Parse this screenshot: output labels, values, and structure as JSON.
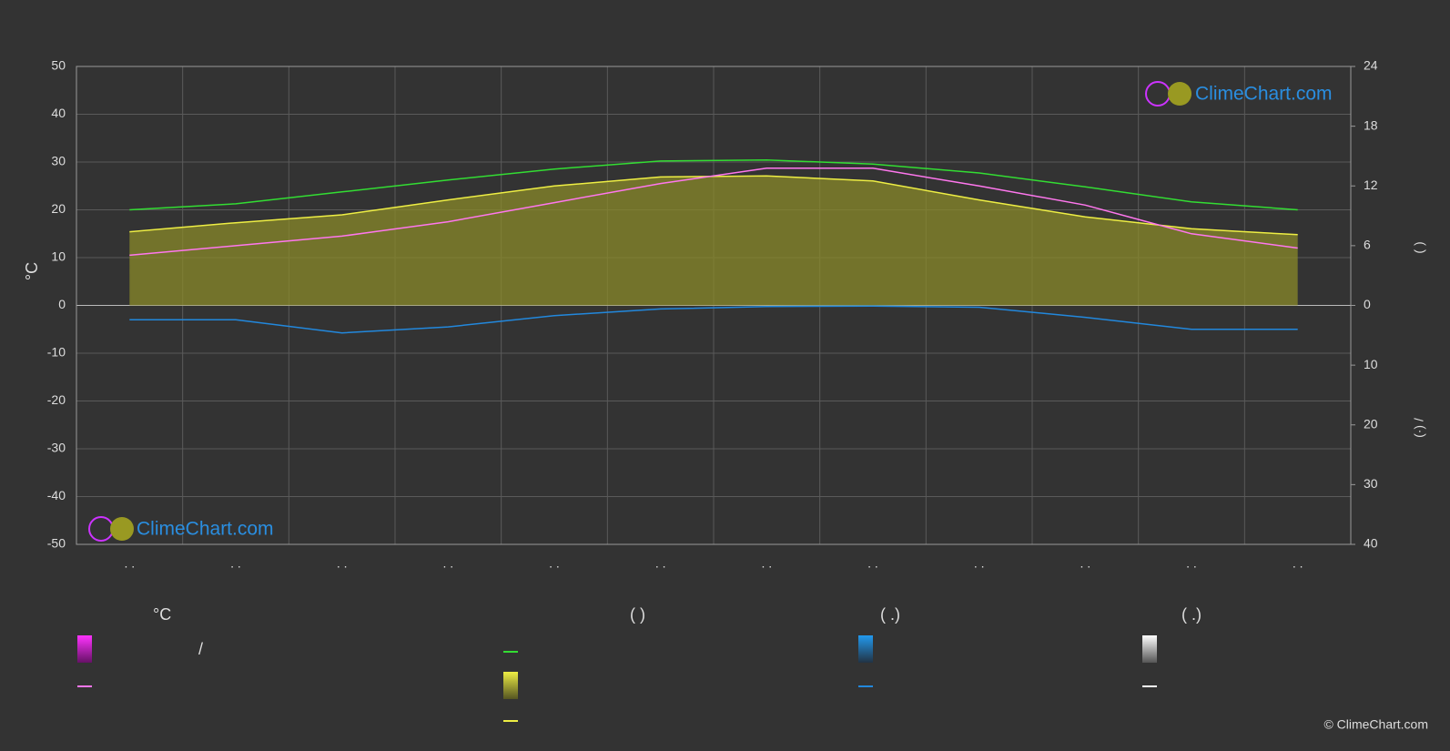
{
  "chart_data": {
    "type": "line",
    "ylabel": "°C",
    "categories": [
      ". .",
      ". .",
      ". .",
      ". .",
      ". .",
      ". .",
      ". .",
      ". .",
      ". .",
      ". .",
      ". .",
      ". ."
    ],
    "ylim": [
      -50,
      50
    ],
    "yticks": [
      -50,
      -40,
      -30,
      -20,
      -10,
      0,
      10,
      20,
      30,
      40,
      50
    ],
    "y2lim": [
      0,
      24
    ],
    "y2ticks": [
      0,
      6,
      12,
      18,
      24
    ],
    "y2label": "(           )",
    "y3lim": [
      0,
      40
    ],
    "y3ticks": [
      10,
      20,
      30,
      40
    ],
    "y3label": "(·)          /",
    "grid": true,
    "series": [
      {
        "color": "#33dd33",
        "axis": "y2",
        "values": [
          9.6,
          10.2,
          11.4,
          12.6,
          13.7,
          14.5,
          14.6,
          14.2,
          13.3,
          11.9,
          10.4,
          9.6
        ]
      },
      {
        "color": "#eeee44",
        "axis": "y2",
        "fill": "#8a8a2a",
        "values": [
          7.4,
          8.3,
          9.1,
          10.6,
          12.0,
          12.9,
          13.0,
          12.5,
          10.6,
          8.9,
          7.7,
          7.1
        ]
      },
      {
        "color": "#ff77ee",
        "axis": "y",
        "values": [
          10.5,
          12.5,
          14.5,
          17.5,
          21.5,
          25.5,
          28.7,
          28.7,
          25,
          21,
          15,
          12
        ]
      },
      {
        "color": "#2288dd",
        "axis": "y3",
        "values": [
          2.4,
          2.4,
          4.6,
          3.6,
          1.7,
          0.6,
          0.2,
          0.1,
          0.3,
          2.0,
          4.0,
          4.0
        ]
      }
    ],
    "legend": {
      "headers": [
        "°C",
        "(          )",
        "(   .)",
        "(   .)"
      ],
      "range_label": "/"
    },
    "watermark": "ClimeChart.com",
    "copyright": "© ClimeChart.com"
  }
}
